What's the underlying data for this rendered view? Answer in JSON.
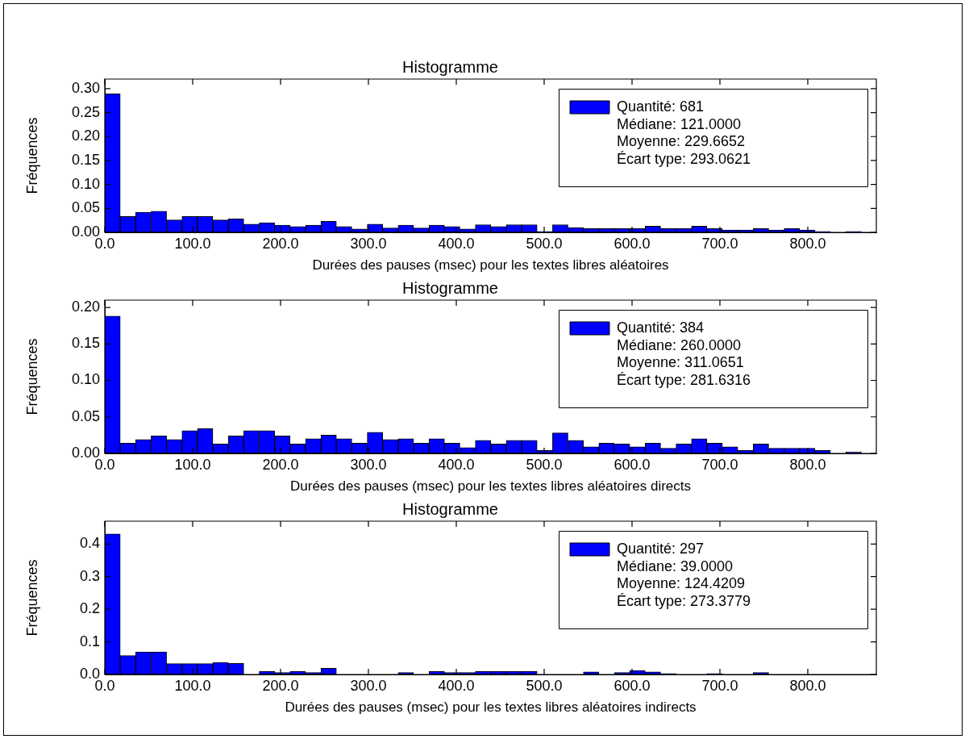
{
  "chart_data": [
    {
      "type": "histogram",
      "title": "Histogramme",
      "xlabel": "Durées des pauses (msec) pour les textes libres aléatoires",
      "ylabel": "Fréquences",
      "legend": "top right",
      "bins": [
        0,
        17.57,
        35.14,
        52.71,
        70.28,
        87.85,
        105.42,
        122.99,
        140.56,
        158.13,
        175.7,
        193.27,
        210.84,
        228.41,
        245.98,
        263.55,
        281.12,
        298.69,
        316.26,
        333.83,
        351.4,
        368.97,
        386.54,
        404.11,
        421.68,
        439.25,
        456.82,
        474.39,
        491.96,
        509.53,
        527.1,
        544.67,
        562.24,
        579.81,
        597.38,
        614.95,
        632.52,
        650.09,
        667.66,
        685.23,
        702.8,
        720.37,
        737.94,
        755.51,
        773.08,
        790.65,
        808.22,
        825.79,
        843.36,
        860.93
      ],
      "series": [
        {
          "name": "Quantité: 681\nMédiane: 121.0000\nMoyenne: 229.6652\nÉcart type: 293.0621",
          "color": "#0000ff",
          "values": [
            0.289,
            0.033,
            0.042,
            0.044,
            0.026,
            0.033,
            0.033,
            0.026,
            0.028,
            0.017,
            0.02,
            0.015,
            0.012,
            0.015,
            0.023,
            0.012,
            0.007,
            0.017,
            0.009,
            0.015,
            0.009,
            0.015,
            0.012,
            0.007,
            0.016,
            0.012,
            0.016,
            0.016,
            0.002,
            0.016,
            0.01,
            0.008,
            0.008,
            0.008,
            0.008,
            0.013,
            0.008,
            0.008,
            0.013,
            0.008,
            0.005,
            0.005,
            0.008,
            0.005,
            0.008,
            0.005,
            0.002,
            0,
            0.002
          ]
        }
      ],
      "xlim": [
        0,
        878
      ],
      "xticks": [
        {
          "value": 0,
          "label": "0.0"
        },
        {
          "value": 100,
          "label": "100.0"
        },
        {
          "value": 200,
          "label": "200.0"
        },
        {
          "value": 300,
          "label": "300.0"
        },
        {
          "value": 400,
          "label": "400.0"
        },
        {
          "value": 500,
          "label": "500.0"
        },
        {
          "value": 600,
          "label": "600.0"
        },
        {
          "value": 700,
          "label": "700.0"
        },
        {
          "value": 800,
          "label": "800.0"
        }
      ],
      "ylim": [
        0,
        0.32
      ],
      "yticks": [
        {
          "value": 0,
          "label": "0.00"
        },
        {
          "value": 0.05,
          "label": "0.05"
        },
        {
          "value": 0.1,
          "label": "0.10"
        },
        {
          "value": 0.15,
          "label": "0.15"
        },
        {
          "value": 0.2,
          "label": "0.20"
        },
        {
          "value": 0.25,
          "label": "0.25"
        },
        {
          "value": 0.3,
          "label": "0.30"
        }
      ]
    },
    {
      "type": "histogram",
      "title": "Histogramme",
      "xlabel": "Durées des pauses (msec) pour les textes libres aléatoires directs",
      "ylabel": "Fréquences",
      "legend": "top right",
      "bins": [
        0,
        17.57,
        35.14,
        52.71,
        70.28,
        87.85,
        105.42,
        122.99,
        140.56,
        158.13,
        175.7,
        193.27,
        210.84,
        228.41,
        245.98,
        263.55,
        281.12,
        298.69,
        316.26,
        333.83,
        351.4,
        368.97,
        386.54,
        404.11,
        421.68,
        439.25,
        456.82,
        474.39,
        491.96,
        509.53,
        527.1,
        544.67,
        562.24,
        579.81,
        597.38,
        614.95,
        632.52,
        650.09,
        667.66,
        685.23,
        702.8,
        720.37,
        737.94,
        755.51,
        773.08,
        790.65,
        808.22,
        825.79,
        843.36,
        860.93
      ],
      "series": [
        {
          "name": "Quantité: 384\nMédiane: 260.0000\nMoyenne: 311.0651\nÉcart type: 281.6316",
          "color": "#0000ff",
          "values": [
            0.188,
            0.014,
            0.019,
            0.024,
            0.019,
            0.031,
            0.034,
            0.013,
            0.024,
            0.031,
            0.031,
            0.024,
            0.013,
            0.02,
            0.025,
            0.02,
            0.014,
            0.029,
            0.019,
            0.02,
            0.014,
            0.02,
            0.014,
            0.008,
            0.018,
            0.013,
            0.018,
            0.018,
            0.004,
            0.028,
            0.018,
            0.009,
            0.014,
            0.013,
            0.009,
            0.014,
            0.007,
            0.013,
            0.02,
            0.014,
            0.009,
            0.004,
            0.013,
            0.007,
            0.007,
            0.007,
            0.004,
            0,
            0.002
          ]
        }
      ],
      "xlim": [
        0,
        878
      ],
      "xticks": [
        {
          "value": 0,
          "label": "0.0"
        },
        {
          "value": 100,
          "label": "100.0"
        },
        {
          "value": 200,
          "label": "200.0"
        },
        {
          "value": 300,
          "label": "300.0"
        },
        {
          "value": 400,
          "label": "400.0"
        },
        {
          "value": 500,
          "label": "500.0"
        },
        {
          "value": 600,
          "label": "600.0"
        },
        {
          "value": 700,
          "label": "700.0"
        },
        {
          "value": 800,
          "label": "800.0"
        }
      ],
      "ylim": [
        0,
        0.21
      ],
      "yticks": [
        {
          "value": 0,
          "label": "0.00"
        },
        {
          "value": 0.05,
          "label": "0.05"
        },
        {
          "value": 0.1,
          "label": "0.10"
        },
        {
          "value": 0.15,
          "label": "0.15"
        },
        {
          "value": 0.2,
          "label": "0.20"
        }
      ]
    },
    {
      "type": "histogram",
      "title": "Histogramme",
      "xlabel": "Durées des pauses (msec) pour les textes libres aléatoires indirects",
      "ylabel": "Fréquences",
      "legend": "top right",
      "bins": [
        0,
        17.57,
        35.14,
        52.71,
        70.28,
        87.85,
        105.42,
        122.99,
        140.56,
        158.13,
        175.7,
        193.27,
        210.84,
        228.41,
        245.98,
        263.55,
        281.12,
        298.69,
        316.26,
        333.83,
        351.4,
        368.97,
        386.54,
        404.11,
        421.68,
        439.25,
        456.82,
        474.39,
        491.96,
        509.53,
        527.1,
        544.67,
        562.24,
        579.81,
        597.38,
        614.95,
        632.52,
        650.09,
        667.66,
        685.23,
        702.8,
        720.37,
        737.94,
        755.51,
        773.08,
        790.65,
        808.22,
        825.79,
        843.36,
        860.93
      ],
      "series": [
        {
          "name": "Quantité: 297\nMédiane: 39.0000\nMoyenne: 124.4209\nÉcart type: 273.3779",
          "color": "#0000ff",
          "values": [
            0.431,
            0.058,
            0.069,
            0.069,
            0.033,
            0.033,
            0.033,
            0.037,
            0.034,
            0,
            0.01,
            0.006,
            0.01,
            0.006,
            0.019,
            null,
            0,
            null,
            0,
            0.006,
            null,
            0.01,
            0.006,
            0.006,
            0.01,
            0.01,
            0.01,
            0.01,
            0,
            0,
            0,
            0.008,
            0,
            0.006,
            0.012,
            0.008,
            0.003,
            0,
            0,
            0.003,
            0,
            0,
            0.006,
            0,
            0,
            0,
            0,
            0,
            0
          ]
        }
      ],
      "xlim": [
        0,
        878
      ],
      "xticks": [
        {
          "value": 0,
          "label": "0.0"
        },
        {
          "value": 100,
          "label": "100.0"
        },
        {
          "value": 200,
          "label": "200.0"
        },
        {
          "value": 300,
          "label": "300.0"
        },
        {
          "value": 400,
          "label": "400.0"
        },
        {
          "value": 500,
          "label": "500.0"
        },
        {
          "value": 600,
          "label": "600.0"
        },
        {
          "value": 700,
          "label": "700.0"
        },
        {
          "value": 800,
          "label": "800.0"
        }
      ],
      "ylim": [
        0,
        0.47
      ],
      "yticks": [
        {
          "value": 0,
          "label": "0.0"
        },
        {
          "value": 0.1,
          "label": "0.1"
        },
        {
          "value": 0.2,
          "label": "0.2"
        },
        {
          "value": 0.3,
          "label": "0.3"
        },
        {
          "value": 0.4,
          "label": "0.4"
        }
      ]
    }
  ]
}
